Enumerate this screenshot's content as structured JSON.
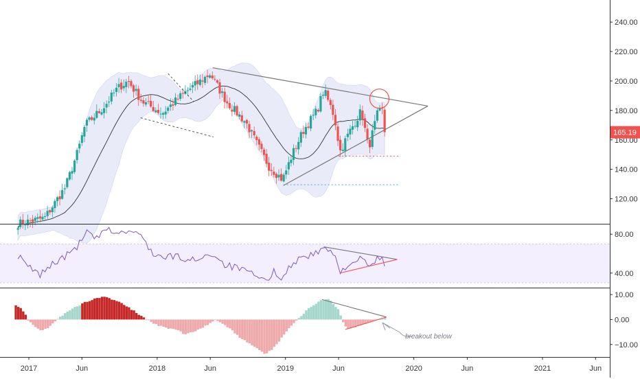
{
  "last_price_badge": "165.19",
  "annotation_text": "breakout below",
  "colors": {
    "up": "#26a69a",
    "down": "#ef5350",
    "bb_fill": "#e9ecf8",
    "trendline": "#777777",
    "rsi_line": "#7e57c2",
    "rsi_band": "#f3efff",
    "hist_up_dark": "#26a69a",
    "hist_up_light": "#a5d6cc",
    "hist_down_dark": "#c62828",
    "hist_down_light": "#eeaaaa",
    "level_red": "#ef5350",
    "level_blue": "#42a5f5",
    "circle": "#ef5350",
    "price_badge": "#ef5350"
  },
  "chart_data": [
    {
      "type": "candlestick",
      "pane": "price",
      "ylim": [
        103,
        255
      ],
      "y_ticks": [
        "120.00",
        "140.00",
        "160.00",
        "180.00",
        "200.00",
        "220.00",
        "240.00"
      ],
      "last_price": 165.19,
      "sma_period_weeks": 20,
      "bollinger_k": 2,
      "anchors": [
        [
          "2016-12-01",
          103
        ],
        [
          "2017-02-15",
          107
        ],
        [
          "2017-04-15",
          128
        ],
        [
          "2017-05-20",
          152
        ],
        [
          "2017-06-10",
          170
        ],
        [
          "2017-08-01",
          182
        ],
        [
          "2017-09-10",
          195
        ],
        [
          "2017-10-10",
          200
        ],
        [
          "2017-11-20",
          186
        ],
        [
          "2018-01-15",
          178
        ],
        [
          "2018-03-15",
          191
        ],
        [
          "2018-06-01",
          205
        ],
        [
          "2018-06-20",
          197
        ],
        [
          "2018-07-20",
          185
        ],
        [
          "2018-09-10",
          172
        ],
        [
          "2018-10-10",
          158
        ],
        [
          "2018-11-15",
          142
        ],
        [
          "2018-12-24",
          133
        ],
        [
          "2019-01-20",
          150
        ],
        [
          "2019-02-20",
          166
        ],
        [
          "2019-04-01",
          180
        ],
        [
          "2019-04-20",
          194
        ],
        [
          "2019-05-20",
          176
        ],
        [
          "2019-06-05",
          152
        ],
        [
          "2019-07-01",
          165
        ],
        [
          "2019-08-05",
          180
        ],
        [
          "2019-08-25",
          154
        ],
        [
          "2019-09-20",
          178
        ],
        [
          "2019-10-05",
          180
        ],
        [
          "2019-10-12",
          165.19
        ]
      ],
      "trendlines": [
        {
          "from": [
            "2018-06-08",
            209
          ],
          "to": [
            "2020-02-10",
            183
          ]
        },
        {
          "from": [
            "2018-12-26",
            129
          ],
          "to": [
            "2020-02-10",
            183
          ]
        },
        {
          "from": [
            "2018-02-01",
            205
          ],
          "to": [
            "2018-04-15",
            186
          ]
        },
        {
          "from": [
            "2017-11-15",
            175
          ],
          "to": [
            "2018-06-10",
            162
          ]
        }
      ],
      "levels": [
        {
          "y": 149,
          "from": "2019-06-01",
          "to": "2019-11-20",
          "color": "red"
        },
        {
          "y": 129.5,
          "from": "2018-12-26",
          "to": "2019-11-20",
          "color": "blue"
        }
      ],
      "highlight_circle": {
        "x": "2019-09-25",
        "y": 188
      }
    },
    {
      "type": "line",
      "pane": "rsi",
      "ylim": [
        25,
        90
      ],
      "band": [
        30,
        70
      ],
      "y_ticks": [
        "40.00",
        "80.00"
      ],
      "anchors": [
        [
          "2016-12-01",
          58
        ],
        [
          "2016-12-25",
          48
        ],
        [
          "2017-02-01",
          38
        ],
        [
          "2017-03-10",
          50
        ],
        [
          "2017-04-15",
          57
        ],
        [
          "2017-05-20",
          68
        ],
        [
          "2017-06-15",
          82
        ],
        [
          "2017-07-10",
          75
        ],
        [
          "2017-08-15",
          85
        ],
        [
          "2017-09-10",
          81
        ],
        [
          "2017-10-20",
          83
        ],
        [
          "2017-11-20",
          77
        ],
        [
          "2017-12-20",
          60
        ],
        [
          "2018-01-20",
          55
        ],
        [
          "2018-02-20",
          58
        ],
        [
          "2018-04-01",
          52
        ],
        [
          "2018-05-01",
          56
        ],
        [
          "2018-06-08",
          60
        ],
        [
          "2018-07-15",
          48
        ],
        [
          "2018-08-20",
          45
        ],
        [
          "2018-10-01",
          38
        ],
        [
          "2018-11-05",
          31
        ],
        [
          "2018-12-01",
          42
        ],
        [
          "2018-12-24",
          35
        ],
        [
          "2019-01-20",
          50
        ],
        [
          "2019-02-20",
          57
        ],
        [
          "2019-04-01",
          60
        ],
        [
          "2019-04-20",
          67
        ],
        [
          "2019-05-20",
          58
        ],
        [
          "2019-06-05",
          40
        ],
        [
          "2019-06-25",
          49
        ],
        [
          "2019-07-20",
          52
        ],
        [
          "2019-08-05",
          55
        ],
        [
          "2019-08-25",
          46
        ],
        [
          "2019-09-20",
          55
        ],
        [
          "2019-10-05",
          53
        ],
        [
          "2019-10-12",
          47
        ]
      ],
      "trendlines": [
        {
          "from": [
            "2019-04-20",
            67
          ],
          "to": [
            "2019-11-15",
            54
          ],
          "color": "grey"
        },
        {
          "from": [
            "2019-06-05",
            40
          ],
          "to": [
            "2019-11-15",
            54
          ],
          "color": "red"
        }
      ]
    },
    {
      "type": "histogram",
      "pane": "macd",
      "ylim": [
        -15,
        12.5
      ],
      "y_ticks": [
        "10.00",
        "0.00",
        "−10.00"
      ],
      "anchors": [
        [
          "2016-11-25",
          6
        ],
        [
          "2016-12-20",
          3
        ],
        [
          "2016-12-28",
          0
        ],
        [
          "2017-02-01",
          -4.5
        ],
        [
          "2017-03-01",
          -3
        ],
        [
          "2017-03-20",
          0
        ],
        [
          "2017-05-01",
          4
        ],
        [
          "2017-06-10",
          7
        ],
        [
          "2017-07-10",
          8.5
        ],
        [
          "2017-08-01",
          9
        ],
        [
          "2017-09-01",
          8
        ],
        [
          "2017-10-10",
          5
        ],
        [
          "2017-11-15",
          1.5
        ],
        [
          "2017-12-01",
          0
        ],
        [
          "2018-01-15",
          -3
        ],
        [
          "2018-02-25",
          -4
        ],
        [
          "2018-03-20",
          -6
        ],
        [
          "2018-04-20",
          -4.5
        ],
        [
          "2018-05-25",
          -2
        ],
        [
          "2018-06-15",
          0
        ],
        [
          "2018-07-20",
          -3
        ],
        [
          "2018-09-01",
          -8
        ],
        [
          "2018-10-15",
          -12
        ],
        [
          "2018-11-05",
          -14
        ],
        [
          "2018-12-01",
          -11
        ],
        [
          "2018-12-28",
          -6
        ],
        [
          "2019-01-20",
          -2
        ],
        [
          "2019-02-05",
          0
        ],
        [
          "2019-03-10",
          5
        ],
        [
          "2019-04-10",
          7.5
        ],
        [
          "2019-05-05",
          8
        ],
        [
          "2019-06-01",
          4
        ],
        [
          "2019-06-10",
          0
        ],
        [
          "2019-06-25",
          -4
        ],
        [
          "2019-07-20",
          -3
        ],
        [
          "2019-08-20",
          -1.5
        ],
        [
          "2019-09-20",
          0
        ],
        [
          "2019-10-12",
          0.8
        ]
      ],
      "trendlines": [
        {
          "from": [
            "2019-04-15",
            8
          ],
          "to": [
            "2019-10-15",
            1
          ],
          "color": "grey"
        },
        {
          "from": [
            "2019-06-20",
            -4
          ],
          "to": [
            "2019-10-15",
            1
          ],
          "color": "red"
        }
      ]
    }
  ],
  "x_axis_labels": [
    {
      "date": "2017-01-01",
      "label": "2017"
    },
    {
      "date": "2017-06-01",
      "label": "Jun"
    },
    {
      "date": "2018-01-01",
      "label": "2018"
    },
    {
      "date": "2018-06-01",
      "label": "Jun"
    },
    {
      "date": "2019-01-01",
      "label": "2019"
    },
    {
      "date": "2019-06-01",
      "label": "Jun"
    },
    {
      "date": "2020-01-01",
      "label": "2020"
    },
    {
      "date": "2020-06-01",
      "label": "Jun"
    },
    {
      "date": "2021-01-01",
      "label": "2021"
    },
    {
      "date": "2021-06-01",
      "label": "Jun"
    }
  ]
}
